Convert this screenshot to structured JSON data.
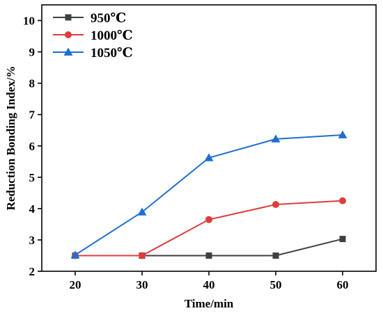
{
  "chart_data": {
    "type": "line",
    "title": "",
    "xlabel": "Time/min",
    "ylabel": "Reduction Bonding Index/%",
    "x": [
      20,
      30,
      40,
      50,
      60
    ],
    "xlim": [
      15,
      65
    ],
    "ylim": [
      2,
      10.5
    ],
    "xticks": [
      "20",
      "30",
      "40",
      "50",
      "60"
    ],
    "yticks": [
      "2",
      "3",
      "4",
      "5",
      "6",
      "7",
      "8",
      "9",
      "10"
    ],
    "grid": false,
    "legend_position": "top-left",
    "series": [
      {
        "name": "950℃",
        "values": [
          2.5,
          2.5,
          2.5,
          2.5,
          3.03
        ],
        "color": "#404040",
        "marker": "square"
      },
      {
        "name": "1000℃",
        "values": [
          2.5,
          2.5,
          3.65,
          4.13,
          4.25
        ],
        "color": "#e03c3c",
        "marker": "circle"
      },
      {
        "name": "1050℃",
        "values": [
          2.52,
          3.89,
          5.62,
          6.22,
          6.35
        ],
        "color": "#1f6fd1",
        "marker": "triangle"
      }
    ]
  }
}
